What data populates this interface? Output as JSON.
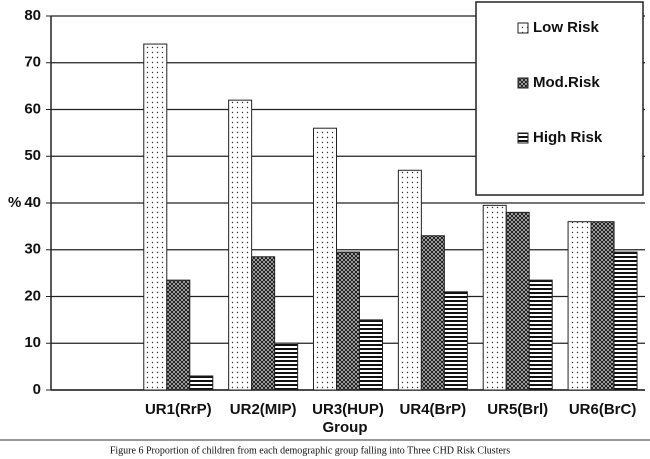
{
  "chart_data": {
    "type": "bar",
    "y_label": "%",
    "x_label": "Group",
    "caption": "Figure 6  Proportion of children from each demographic group falling into Three CHD Risk Clusters",
    "categories": [
      null,
      "UR1(RrP)",
      "UR2(MIP)",
      "UR3(HUP)",
      "UR4(BrP)",
      "UR5(Brl)",
      "UR6(BrC)"
    ],
    "series": [
      {
        "name": "Low Risk",
        "color": "#ffffff",
        "pattern": "dots",
        "values": [
          null,
          74,
          62,
          56,
          47,
          39.5,
          36
        ]
      },
      {
        "name": "Mod.Risk",
        "color": "#333333",
        "pattern": "crosshatch",
        "values": [
          null,
          23.5,
          28.5,
          29.5,
          33,
          38,
          36
        ]
      },
      {
        "name": "High Risk",
        "color": "#111111",
        "pattern": "stripes",
        "values": [
          null,
          3,
          10,
          15,
          21,
          23.5,
          29.5
        ]
      }
    ],
    "ylim": [
      0,
      80
    ],
    "yticks": [
      0,
      10,
      20,
      30,
      40,
      50,
      60,
      70,
      80
    ],
    "grid": true,
    "legend": "top-right"
  }
}
